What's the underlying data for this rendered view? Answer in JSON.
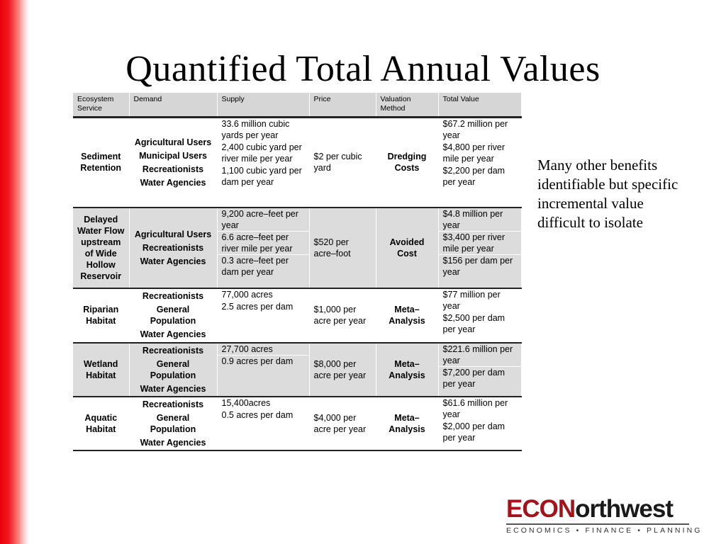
{
  "title": "Quantified Total Annual Values",
  "side_note": "Many other benefits identifiable but specific incremental value difficult to isolate",
  "table": {
    "headers": [
      "Ecosystem Service",
      "Demand",
      "Supply",
      "Price",
      "Valuation Method",
      "Total Value"
    ],
    "groups": [
      {
        "service": "Sediment Retention",
        "demand": [
          "Agricultural Users",
          "Municipal Users",
          "Recreationists",
          "Water Agencies"
        ],
        "supply": [
          "33.6 million cubic yards per year",
          "2,400 cubic yard per river mile per year",
          "1,100 cubic yard per dam per year"
        ],
        "price": "$2 per cubic yard",
        "method": "Dredging Costs",
        "total": [
          "$67.2 million per year",
          "$4,800 per river mile per year",
          "$2,200 per dam per year"
        ]
      },
      {
        "service": "Delayed Water Flow upstream of Wide Hollow Reservoir",
        "demand": [
          "Agricultural Users",
          "Recreationists",
          "Water Agencies"
        ],
        "supply": [
          "9,200 acre–feet per year",
          "6.6 acre–feet per river mile per year",
          "0.3 acre–feet per dam per year"
        ],
        "price": "$520 per acre–foot",
        "method": "Avoided Cost",
        "total": [
          "$4.8 million per year",
          "$3,400 per river mile per year",
          "$156 per dam per year"
        ]
      },
      {
        "service": "Riparian Habitat",
        "demand": [
          "Recreationists",
          "General Population",
          "Water Agencies"
        ],
        "supply": [
          "77,000 acres",
          "2.5 acres per dam"
        ],
        "price": "$1,000 per acre per year",
        "method": "Meta– Analysis",
        "total": [
          "$77 million per year",
          "$2,500 per dam per year"
        ]
      },
      {
        "service": "Wetland Habitat",
        "demand": [
          "Recreationists",
          "General Population",
          "Water Agencies"
        ],
        "supply": [
          "27,700 acres",
          "0.9 acres per dam"
        ],
        "price": "$8,000 per acre per year",
        "method": "Meta– Analysis",
        "total": [
          "$221.6 million per year",
          "$7,200 per dam per year"
        ]
      },
      {
        "service": "Aquatic Habitat",
        "demand": [
          "Recreationists",
          "General Population",
          "Water Agencies"
        ],
        "supply": [
          "15,400acres",
          "0.5 acres per dam"
        ],
        "price": "$4,000 per acre per year",
        "method": "Meta– Analysis",
        "total": [
          "$61.6 million per year",
          "$2,000 per dam per year"
        ]
      }
    ]
  },
  "logo": {
    "part1": "ECON",
    "part2": "orthwest",
    "tagline": "ECONOMICS • FINANCE • PLANNING",
    "color_econ": "#a3131b"
  }
}
